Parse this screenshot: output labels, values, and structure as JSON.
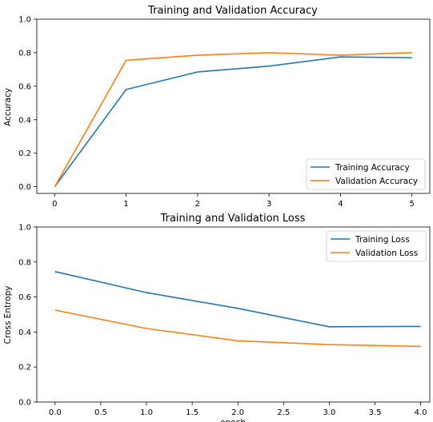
{
  "chart_data": [
    {
      "type": "line",
      "title": "Training and Validation Accuracy",
      "xlabel": "",
      "ylabel": "Accuracy",
      "xlim": [
        -0.25,
        5.25
      ],
      "ylim": [
        -0.04,
        1.0
      ],
      "xticks": [
        "0",
        "1",
        "2",
        "3",
        "4",
        "5"
      ],
      "yticks": [
        "0.0",
        "0.2",
        "0.4",
        "0.6",
        "0.8",
        "1.0"
      ],
      "legend_loc": "lower-right",
      "x": [
        0,
        1,
        2,
        3,
        4,
        5
      ],
      "series": [
        {
          "name": "Training Accuracy",
          "color": "#1f77b4",
          "values": [
            0.0,
            0.58,
            0.685,
            0.72,
            0.775,
            0.77
          ]
        },
        {
          "name": "Validation Accuracy",
          "color": "#ff7f0e",
          "values": [
            0.0,
            0.755,
            0.785,
            0.8,
            0.785,
            0.8
          ]
        }
      ]
    },
    {
      "type": "line",
      "title": "Training and Validation Loss",
      "xlabel": "epoch",
      "ylabel": "Cross Entropy",
      "xlim": [
        -0.2,
        4.1
      ],
      "ylim": [
        0.0,
        1.0
      ],
      "xticks": [
        "0.0",
        "0.5",
        "1.0",
        "1.5",
        "2.0",
        "2.5",
        "3.0",
        "3.5",
        "4.0"
      ],
      "yticks": [
        "0.0",
        "0.2",
        "0.4",
        "0.6",
        "0.8",
        "1.0"
      ],
      "legend_loc": "upper-right",
      "x": [
        0,
        1,
        2,
        3,
        4
      ],
      "series": [
        {
          "name": "Training Loss",
          "color": "#1f77b4",
          "values": [
            0.745,
            0.625,
            0.535,
            0.43,
            0.432
          ]
        },
        {
          "name": "Validation Loss",
          "color": "#ff7f0e",
          "values": [
            0.525,
            0.42,
            0.35,
            0.328,
            0.318
          ]
        }
      ]
    }
  ]
}
